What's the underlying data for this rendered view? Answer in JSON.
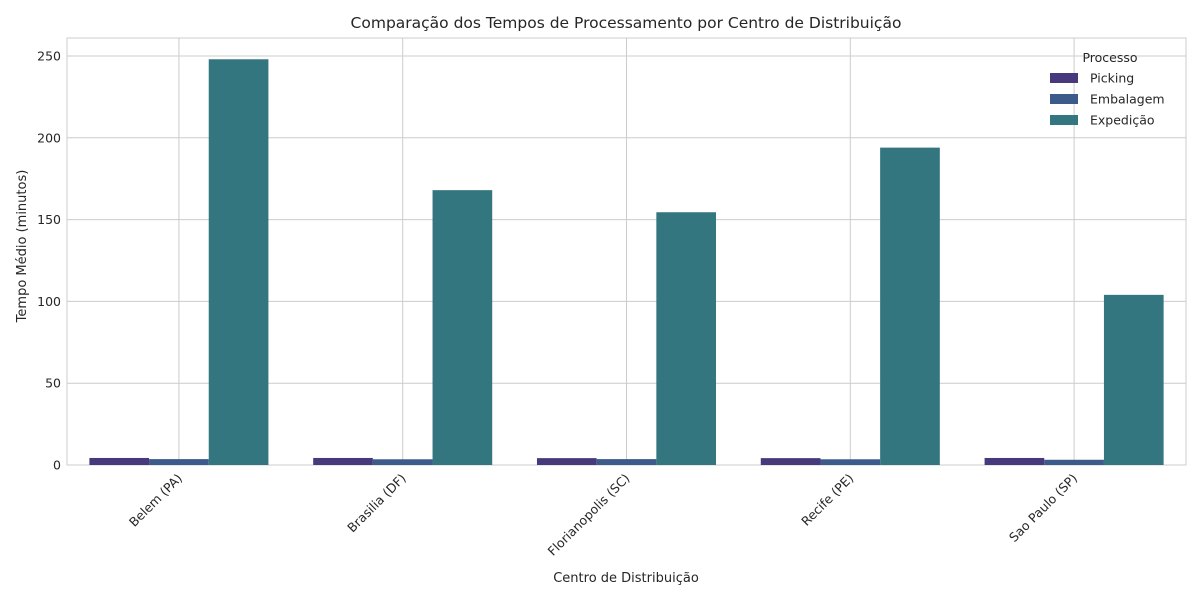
{
  "chart_data": {
    "type": "bar",
    "title": "Comparação dos Tempos de Processamento por Centro de Distribuição",
    "xlabel": "Centro de Distribuição",
    "ylabel": "Tempo Médio (minutos)",
    "categories": [
      "Belem (PA)",
      "Brasilia (DF)",
      "Florianopolis (SC)",
      "Recife (PE)",
      "Sao Paulo (SP)"
    ],
    "series": [
      {
        "name": "Picking",
        "color": "#463a7c",
        "values": [
          4.3,
          4.3,
          4.2,
          4.2,
          4.3
        ]
      },
      {
        "name": "Embalagem",
        "color": "#3d5b8a",
        "values": [
          3.6,
          3.5,
          3.6,
          3.5,
          3.2
        ]
      },
      {
        "name": "Expedição",
        "color": "#33767f",
        "values": [
          248,
          168,
          154.5,
          194,
          104
        ]
      }
    ],
    "ylim": [
      0,
      261
    ],
    "yticks": [
      0,
      50,
      100,
      150,
      200,
      250
    ],
    "grid": true,
    "legend_title": "Processo",
    "legend_position": "top-right"
  }
}
